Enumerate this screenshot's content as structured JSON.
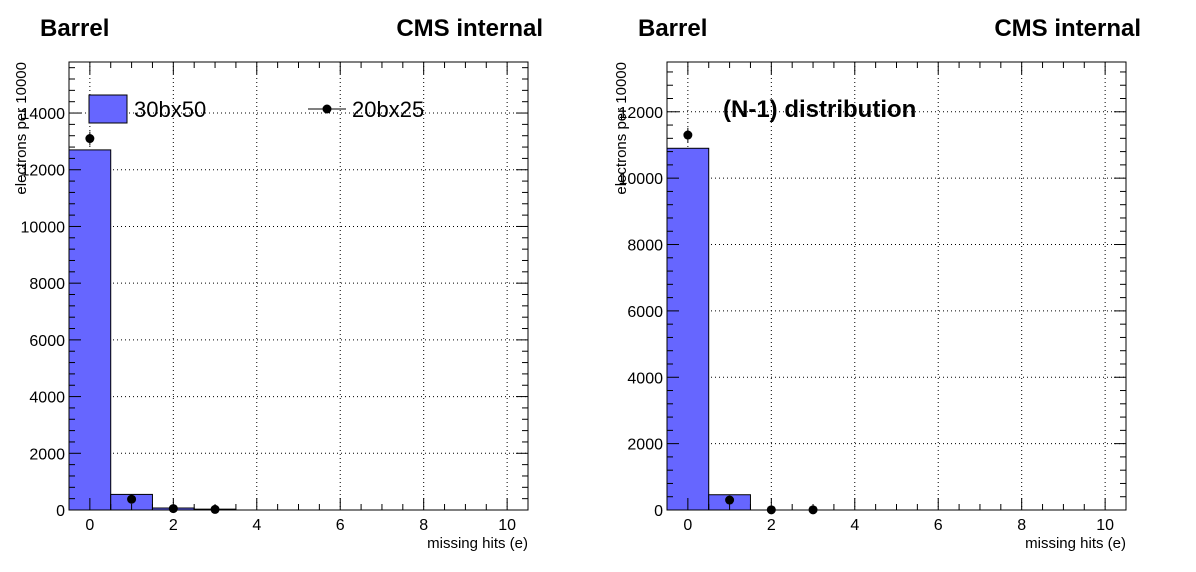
{
  "chart_data": [
    {
      "type": "bar",
      "title_left": "Barrel",
      "title_right": "CMS internal",
      "xlabel": "missing hits (e)",
      "ylabel": "electrons per 10000",
      "xlim": [
        -0.5,
        10.5
      ],
      "ylim": [
        0,
        15800
      ],
      "xticks": [
        0,
        2,
        4,
        6,
        8,
        10
      ],
      "yticks": [
        0,
        2000,
        4000,
        6000,
        8000,
        10000,
        12000,
        14000
      ],
      "grid": true,
      "legend_placement": "top",
      "annotation": "",
      "series": [
        {
          "name": "30bx50",
          "style": "histogram",
          "color": "#6666ff",
          "x": [
            0,
            1,
            2,
            3
          ],
          "values": [
            12700,
            550,
            70,
            30
          ]
        },
        {
          "name": "20bx25",
          "style": "points",
          "color": "#000000",
          "x": [
            0,
            1,
            2,
            3
          ],
          "values": [
            13100,
            380,
            50,
            20
          ]
        }
      ]
    },
    {
      "type": "bar",
      "title_left": "Barrel",
      "title_right": "CMS internal",
      "xlabel": "missing hits (e)",
      "ylabel": "electrons per 10000",
      "xlim": [
        -0.5,
        10.5
      ],
      "ylim": [
        0,
        13500
      ],
      "xticks": [
        0,
        2,
        4,
        6,
        8,
        10
      ],
      "yticks": [
        0,
        2000,
        4000,
        6000,
        8000,
        10000,
        12000
      ],
      "grid": true,
      "legend_placement": "",
      "annotation": "(N-1) distribution",
      "series": [
        {
          "name": "",
          "style": "histogram",
          "color": "#6666ff",
          "x": [
            0,
            1,
            2,
            3
          ],
          "values": [
            10900,
            460,
            0,
            0
          ]
        },
        {
          "name": "",
          "style": "points",
          "color": "#000000",
          "x": [
            0,
            1,
            2,
            3
          ],
          "values": [
            11300,
            300,
            5,
            5
          ]
        }
      ]
    }
  ]
}
